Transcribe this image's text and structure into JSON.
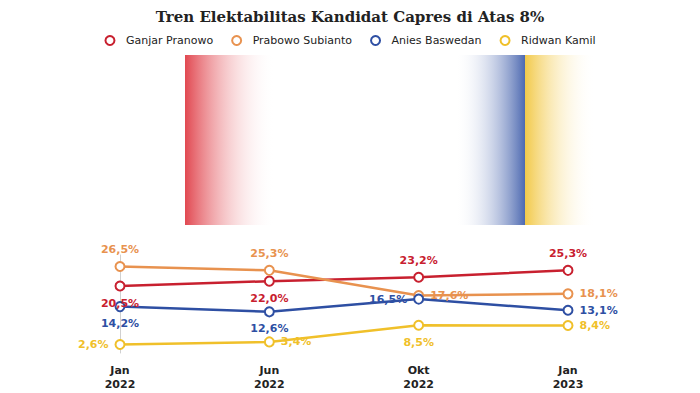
{
  "chart_data": {
    "type": "line",
    "title": "Tren Elektabilitas Kandidat Capres di Atas 8%",
    "categories": [
      "Jan 2022",
      "Jun 2022",
      "Okt 2022",
      "Jan 2023"
    ],
    "series": [
      {
        "name": "Ganjar Pranowo",
        "color": "#c8202f",
        "values": [
          20.5,
          22.0,
          23.2,
          25.3
        ],
        "value_labels": [
          "20,5%",
          "22,0%",
          "23,2%",
          "25,3%"
        ]
      },
      {
        "name": "Prabowo Subianto",
        "color": "#e8924f",
        "values": [
          26.5,
          25.3,
          17.6,
          18.1
        ],
        "value_labels": [
          "26,5%",
          "25,3%",
          "17,6%",
          "18,1%"
        ]
      },
      {
        "name": "Anies Baswedan",
        "color": "#2e4fa3",
        "values": [
          14.2,
          12.6,
          16.5,
          13.1
        ],
        "value_labels": [
          "14,2%",
          "12,6%",
          "16,5%",
          "13,1%"
        ]
      },
      {
        "name": "Ridwan Kamil",
        "color": "#f0c02a",
        "values": [
          2.6,
          3.4,
          8.5,
          8.4
        ],
        "value_labels": [
          "2,6%",
          "3,4%",
          "8,5%",
          "8,4%"
        ]
      }
    ],
    "ylim": [
      0,
      30
    ],
    "tick_labels": "x",
    "grid": false,
    "data_labels": true,
    "legend": "top",
    "marker": "circle"
  }
}
